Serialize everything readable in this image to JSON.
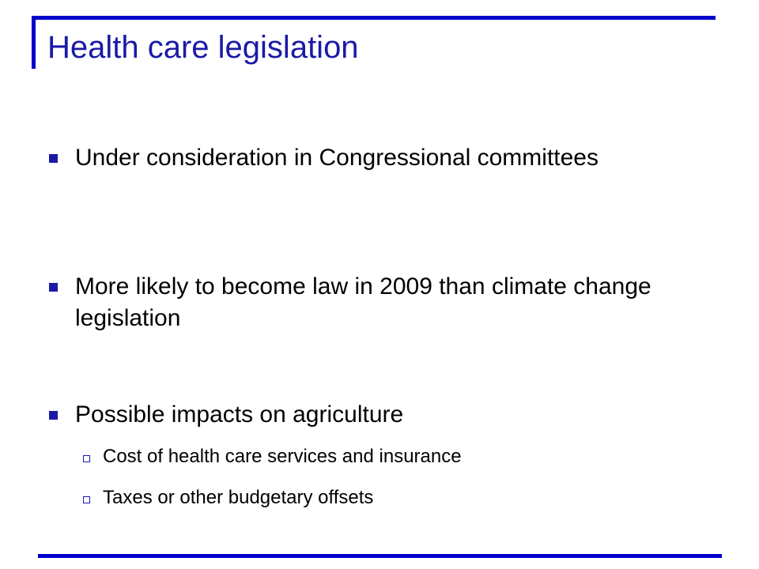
{
  "slide": {
    "title": "Health care legislation",
    "bullets": [
      {
        "text": "Under consideration in Congressional committees"
      },
      {
        "text": "More likely to become law in 2009 than climate change legislation"
      },
      {
        "text": "Possible impacts on agriculture"
      }
    ],
    "sub_bullets": [
      {
        "text": "Cost of health care services and insurance"
      },
      {
        "text": "Taxes or other budgetary offsets"
      }
    ],
    "colors": {
      "accent": "#0000cc",
      "title": "#1a1aa6"
    }
  }
}
